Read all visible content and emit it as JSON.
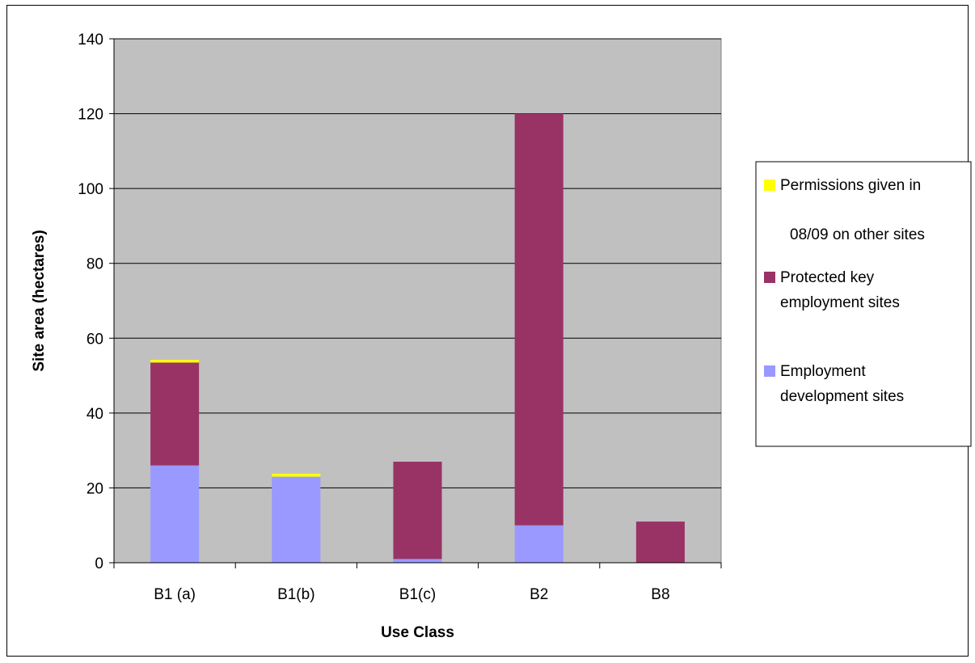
{
  "chart_data": {
    "type": "bar",
    "stacked": true,
    "categories": [
      "B1 (a)",
      "B1(b)",
      "B1(c)",
      "B2",
      "B8"
    ],
    "series": [
      {
        "name": "Employment development sites",
        "values": [
          26,
          23,
          1,
          10,
          0
        ],
        "color": "#9999ff"
      },
      {
        "name": "Protected key employment sites",
        "values": [
          27.5,
          0,
          26,
          110,
          11
        ],
        "color": "#993366"
      },
      {
        "name": "Permissions given in 08/09 on other sites",
        "values": [
          0.7,
          0.8,
          0,
          0,
          0
        ],
        "color": "#ffff00"
      }
    ],
    "legend_lines": {
      "permissions": [
        "Permissions given in",
        "08/09 on other sites"
      ],
      "protected": [
        "Protected key",
        "employment sites"
      ],
      "employment": [
        "Employment",
        "development sites"
      ]
    },
    "xlabel": "Use Class",
    "ylabel": "Site area (hectares)",
    "ylim": [
      0,
      140
    ],
    "yticks": [
      0,
      20,
      40,
      60,
      80,
      100,
      120,
      140
    ],
    "grid": true,
    "plot_background": "#c0c0c0",
    "legend_position": "right"
  }
}
